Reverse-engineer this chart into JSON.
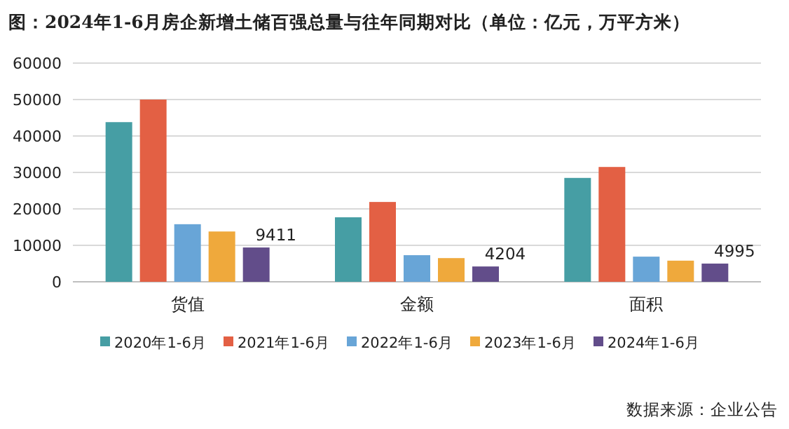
{
  "chart_data": {
    "type": "bar",
    "title": "图：2024年1-6月房企新增土储百强总量与往年同期对比（单位：亿元，万平方米）",
    "categories": [
      "货值",
      "金额",
      "面积"
    ],
    "series": [
      {
        "name": "2020年1-6月",
        "color": "#469ea4",
        "values": [
          43800,
          17700,
          28500
        ]
      },
      {
        "name": "2021年1-6月",
        "color": "#e36044",
        "values": [
          50000,
          21900,
          31500
        ]
      },
      {
        "name": "2022年1-6月",
        "color": "#68a5d7",
        "values": [
          15800,
          7300,
          6900
        ]
      },
      {
        "name": "2023年1-6月",
        "color": "#efa93c",
        "values": [
          13800,
          6500,
          5800
        ]
      },
      {
        "name": "2024年1-6月",
        "color": "#624d8a",
        "values": [
          9411,
          4204,
          4995
        ],
        "value_labels": [
          "9411",
          "4204",
          "4995"
        ]
      }
    ],
    "ylim": [
      0,
      60000
    ],
    "yticks": [
      0,
      10000,
      20000,
      30000,
      40000,
      50000,
      60000
    ],
    "grid": "y",
    "legend": "bottom",
    "annotations": [
      "数据来源：企业公告"
    ]
  }
}
